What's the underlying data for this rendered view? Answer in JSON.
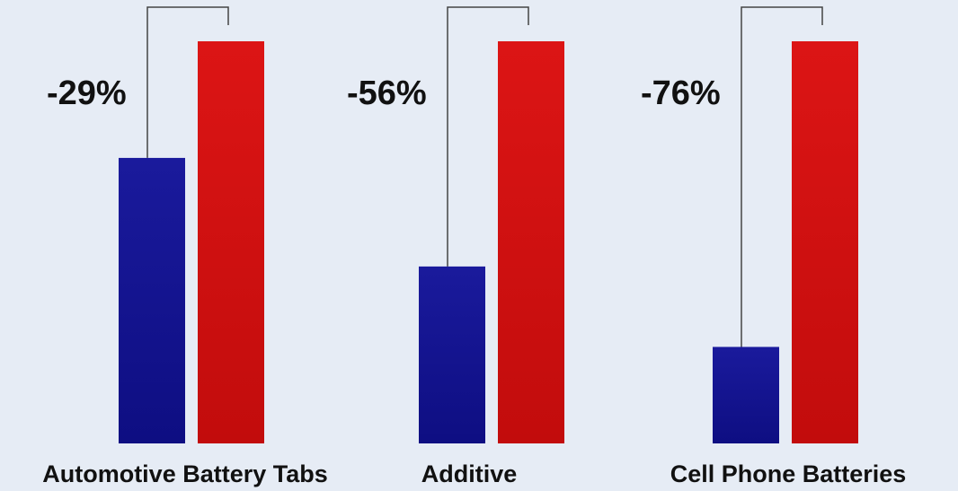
{
  "chart_data": {
    "type": "bar",
    "categories": [
      "Automotive Battery Tabs",
      "Additive",
      "Cell Phone Batteries"
    ],
    "series": [
      {
        "color": "#12128e",
        "values": [
          71,
          44,
          24
        ]
      },
      {
        "color": "#cc1010",
        "values": [
          100,
          100,
          100
        ]
      }
    ],
    "annotations": [
      "-29%",
      "-56%",
      "-76%"
    ],
    "ylim": [
      0,
      100
    ],
    "grid": false,
    "legend": "none"
  },
  "colors": {
    "background": "#e6ecf5",
    "blue": "#12128e",
    "red": "#cc1010"
  }
}
